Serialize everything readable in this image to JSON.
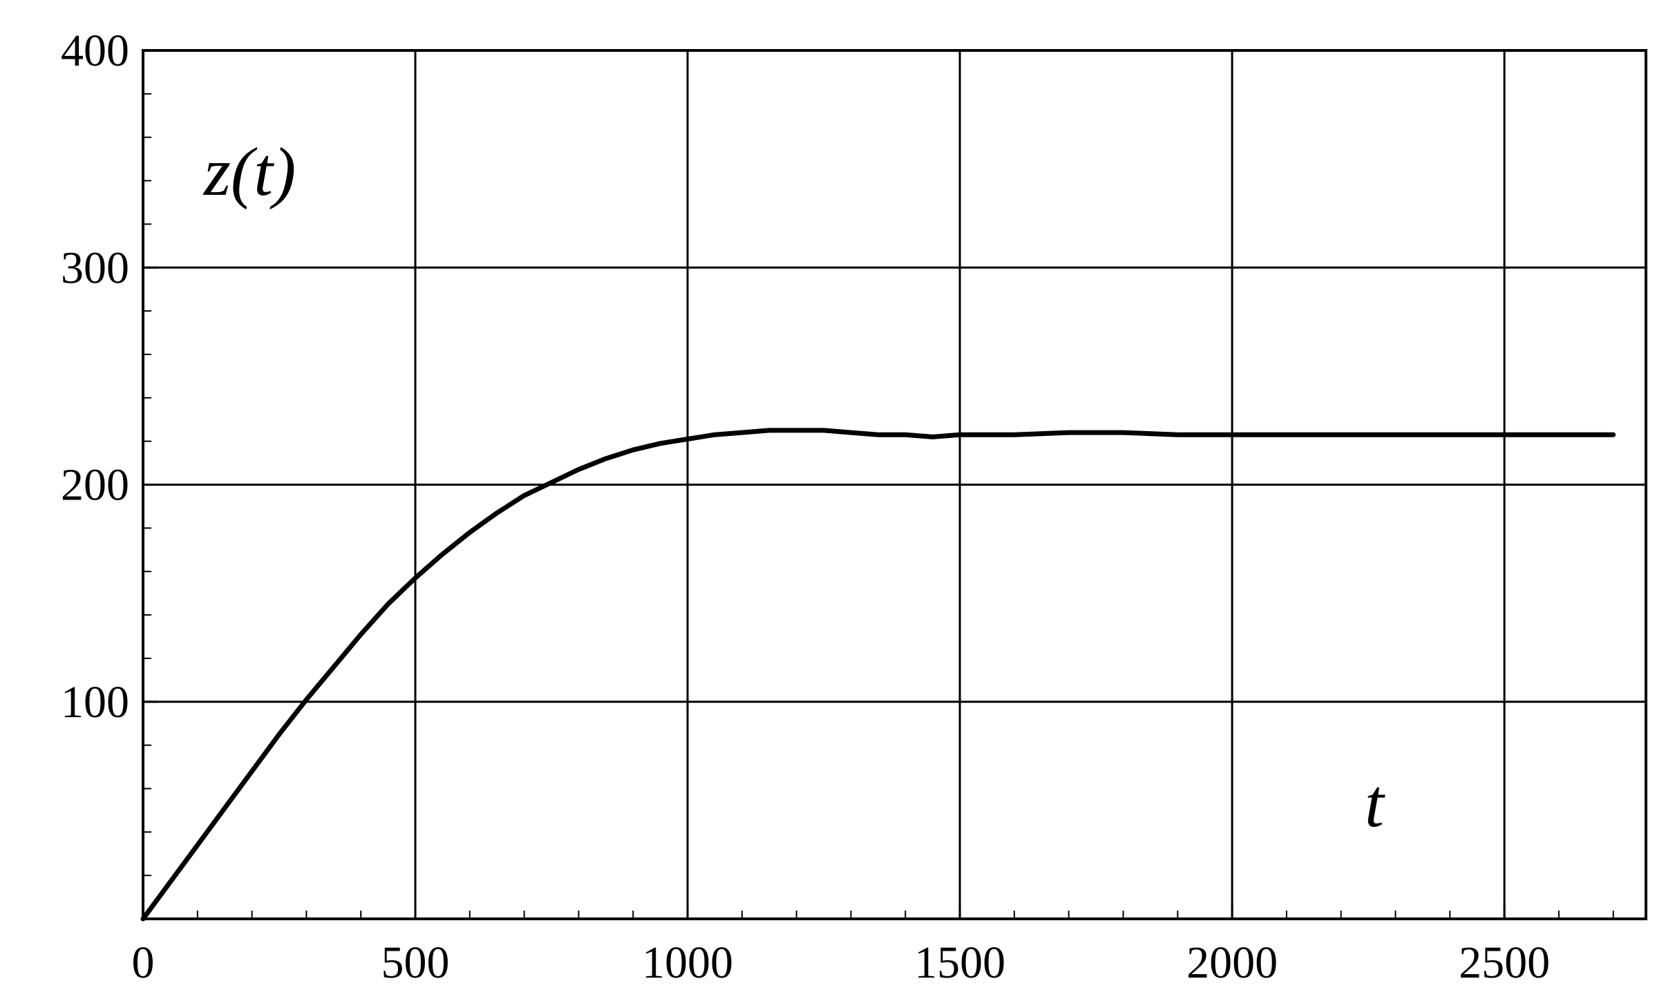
{
  "chart_data": {
    "type": "line",
    "xlabel": "t",
    "ylabel": "z(t)",
    "xlim": [
      0,
      2760
    ],
    "ylim": [
      0,
      400
    ],
    "x_ticks": [
      0,
      500,
      1000,
      1500,
      2000,
      2500
    ],
    "y_ticks": [
      100,
      200,
      300,
      400
    ],
    "x_tick_labels": [
      "0",
      "500",
      "1000",
      "1500",
      "2000",
      "2500"
    ],
    "y_tick_labels": [
      "100",
      "200",
      "300",
      "400"
    ],
    "grid": true,
    "line_color": "#000000",
    "series": [
      {
        "x": [
          0,
          50,
          100,
          150,
          200,
          250,
          300,
          350,
          400,
          450,
          500,
          550,
          600,
          650,
          700,
          750,
          800,
          850,
          900,
          950,
          1000,
          1050,
          1100,
          1150,
          1200,
          1250,
          1300,
          1350,
          1400,
          1450,
          1500,
          1600,
          1700,
          1800,
          1900,
          2000,
          2100,
          2200,
          2300,
          2400,
          2500,
          2600,
          2700
        ],
        "y": [
          0,
          17,
          34,
          51,
          68,
          85,
          101,
          116,
          131,
          145,
          157,
          168,
          178,
          187,
          195,
          201,
          207,
          212,
          216,
          219,
          221,
          223,
          224,
          225,
          225,
          225,
          224,
          223,
          223,
          222,
          223,
          223,
          224,
          224,
          223,
          223,
          223,
          223,
          223,
          223,
          223,
          223,
          223
        ]
      }
    ]
  }
}
